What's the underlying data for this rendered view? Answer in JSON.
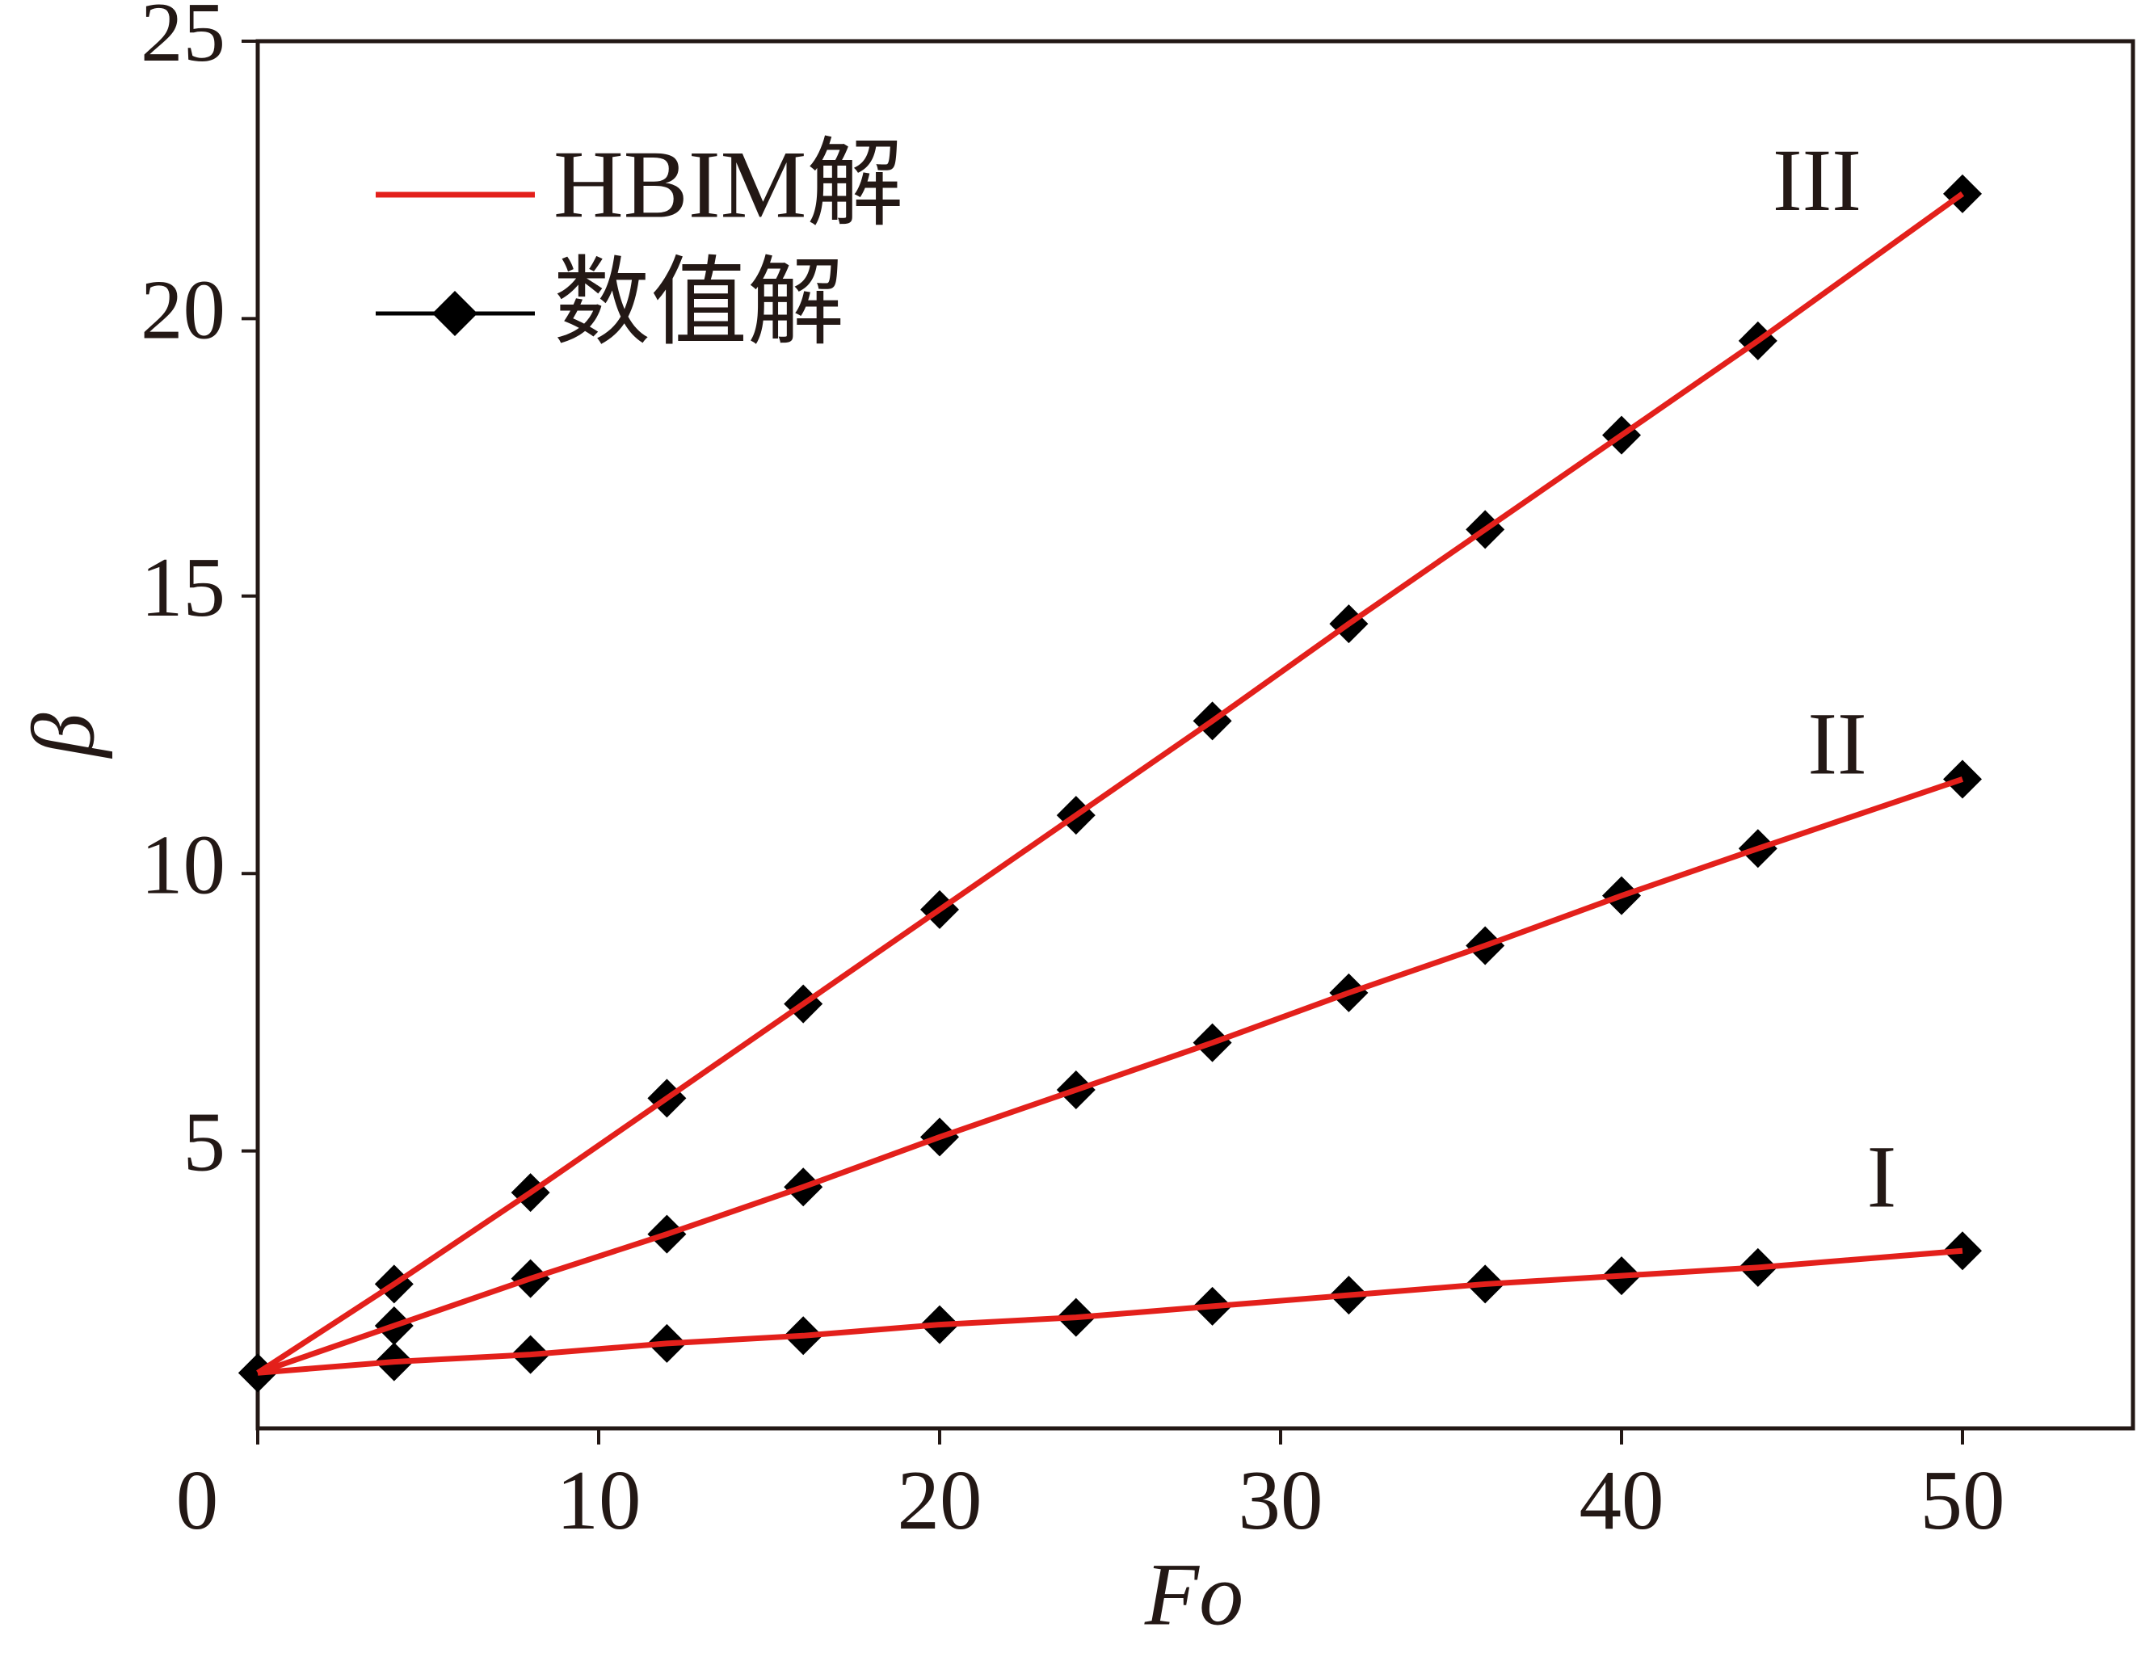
{
  "chart_data": {
    "type": "line",
    "xlabel": "Fo",
    "ylabel": "β",
    "x": [
      0,
      4,
      8,
      12,
      16,
      20,
      24,
      28,
      32,
      36,
      40,
      44,
      50
    ],
    "xlim": [
      0,
      55
    ],
    "xticks": [
      0,
      10,
      20,
      30,
      40,
      50
    ],
    "ylim": [
      0,
      25
    ],
    "yticks": [
      5,
      10,
      15,
      20,
      25
    ],
    "curve_labels": [
      "I",
      "II",
      "III"
    ],
    "series": [
      {
        "name": "HBIM解",
        "color": "#e3201b",
        "marker": "none",
        "curves": [
          [
            1.0,
            1.2,
            1.33,
            1.53,
            1.67,
            1.87,
            2.0,
            2.2,
            2.4,
            2.6,
            2.75,
            2.9,
            3.2
          ],
          [
            1.0,
            1.85,
            2.7,
            3.5,
            4.35,
            5.25,
            6.1,
            6.95,
            7.85,
            8.7,
            9.6,
            10.45,
            11.7
          ],
          [
            1.0,
            2.6,
            4.25,
            5.95,
            7.65,
            9.35,
            11.05,
            12.75,
            14.5,
            16.2,
            17.9,
            19.6,
            22.25
          ]
        ]
      },
      {
        "name": "数值解",
        "color": "#000000",
        "marker": "diamond",
        "curves": [
          [
            1.0,
            1.2,
            1.33,
            1.53,
            1.67,
            1.87,
            2.0,
            2.2,
            2.4,
            2.6,
            2.75,
            2.9,
            3.2
          ],
          [
            1.0,
            1.85,
            2.7,
            3.5,
            4.35,
            5.25,
            6.1,
            6.95,
            7.85,
            8.7,
            9.6,
            10.45,
            11.7
          ],
          [
            1.0,
            2.6,
            4.25,
            5.95,
            7.65,
            9.35,
            11.05,
            12.75,
            14.5,
            16.2,
            17.9,
            19.6,
            22.25
          ]
        ]
      }
    ]
  }
}
